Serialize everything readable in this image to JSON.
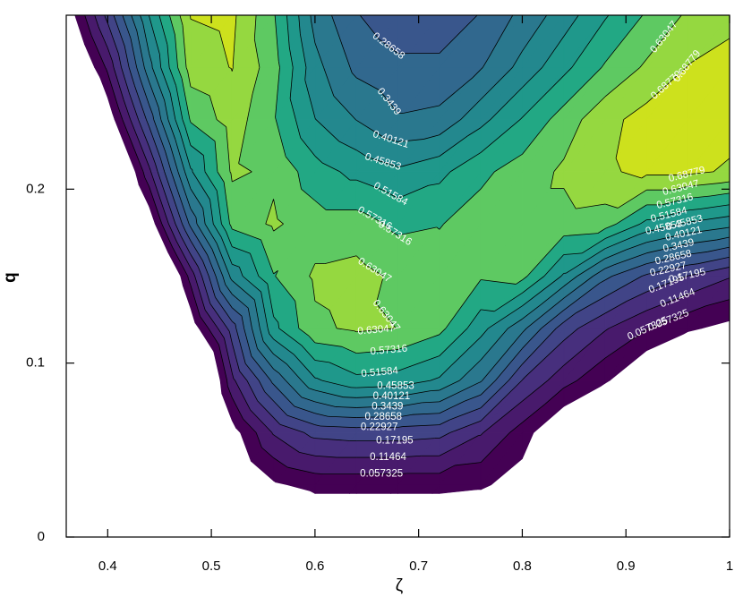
{
  "chart_data": {
    "type": "contour",
    "xlabel": "ζ",
    "ylabel": "q",
    "xlim": [
      0.36,
      1.0
    ],
    "ylim": [
      0,
      0.3
    ],
    "xticks": [
      0.4,
      0.5,
      0.6,
      0.7,
      0.8,
      0.9,
      1
    ],
    "yticks": [
      0,
      0.1,
      0.2
    ],
    "levels": [
      0.057325,
      0.11464,
      0.17195,
      0.22927,
      0.28658,
      0.3439,
      0.40121,
      0.45853,
      0.51584,
      0.57316,
      0.63047,
      0.68779
    ],
    "zlim": [
      0,
      0.75
    ],
    "colors": [
      "#440154",
      "#481a6c",
      "#472f7d",
      "#414487",
      "#39568c",
      "#31688e",
      "#2a788e",
      "#23888e",
      "#1f988b",
      "#22a884",
      "#5ec962",
      "#95d840",
      "#cde11d"
    ],
    "line_color": "#000000",
    "x": [
      0.36,
      0.4,
      0.44,
      0.48,
      0.52,
      0.56,
      0.6,
      0.64,
      0.68,
      0.72,
      0.76,
      0.8,
      0.84,
      0.88,
      0.92,
      0.96,
      1.0
    ],
    "y": [
      0,
      0.03,
      0.06,
      0.09,
      0.12,
      0.15,
      0.18,
      0.21,
      0.24,
      0.27,
      0.3
    ],
    "z": [
      [
        -0.3,
        -0.3,
        -0.3,
        -0.3,
        -0.3,
        -0.15,
        -0.1,
        -0.1,
        -0.1,
        -0.1,
        -0.1,
        -0.2,
        -0.3,
        -0.3,
        -0.3,
        -0.3,
        -0.3
      ],
      [
        -0.6,
        -0.5,
        -0.4,
        -0.25,
        -0.1,
        -0.01,
        0.02,
        0.02,
        0.02,
        0.02,
        0.01,
        -0.03,
        -0.1,
        -0.2,
        -0.3,
        -0.35,
        -0.4
      ],
      [
        -0.8,
        -0.7,
        -0.5,
        -0.3,
        -0.03,
        0.12,
        0.19,
        0.2,
        0.2,
        0.19,
        0.12,
        0.03,
        -0.08,
        -0.18,
        -0.28,
        -0.35,
        -0.4
      ],
      [
        -1.0,
        -0.8,
        -0.55,
        -0.25,
        0.1,
        0.3,
        0.45,
        0.5,
        0.49,
        0.45,
        0.35,
        0.17,
        0.08,
        0.01,
        -0.08,
        -0.15,
        -0.2
      ],
      [
        -0.8,
        -0.6,
        -0.35,
        -0.05,
        0.2,
        0.5,
        0.62,
        0.64,
        0.63,
        0.59,
        0.48,
        0.36,
        0.2,
        0.12,
        0.06,
        0.01,
        -0.02
      ],
      [
        -0.7,
        -0.5,
        -0.25,
        0.08,
        0.42,
        0.57,
        0.64,
        0.65,
        0.62,
        0.6,
        0.58,
        0.59,
        0.45,
        0.3,
        0.22,
        0.17,
        0.12
      ],
      [
        -0.55,
        -0.3,
        -0.05,
        0.3,
        0.59,
        0.64,
        0.6,
        0.6,
        0.56,
        0.57,
        0.6,
        0.61,
        0.61,
        0.6,
        0.5,
        0.45,
        0.42
      ],
      [
        -0.45,
        -0.2,
        0.1,
        0.45,
        0.64,
        0.62,
        0.54,
        0.5,
        0.47,
        0.5,
        0.56,
        0.6,
        0.64,
        0.68,
        0.7,
        0.7,
        0.68
      ],
      [
        -0.3,
        -0.05,
        0.25,
        0.58,
        0.66,
        0.58,
        0.46,
        0.4,
        0.35,
        0.36,
        0.44,
        0.52,
        0.6,
        0.67,
        0.71,
        0.72,
        0.71
      ],
      [
        -0.15,
        0.07,
        0.38,
        0.66,
        0.69,
        0.6,
        0.42,
        0.33,
        0.3,
        0.3,
        0.34,
        0.42,
        0.5,
        0.58,
        0.64,
        0.69,
        0.71
      ],
      [
        -0.05,
        0.19,
        0.46,
        0.69,
        0.7,
        0.58,
        0.38,
        0.29,
        0.25,
        0.25,
        0.29,
        0.36,
        0.43,
        0.51,
        0.58,
        0.64,
        0.67
      ]
    ]
  }
}
